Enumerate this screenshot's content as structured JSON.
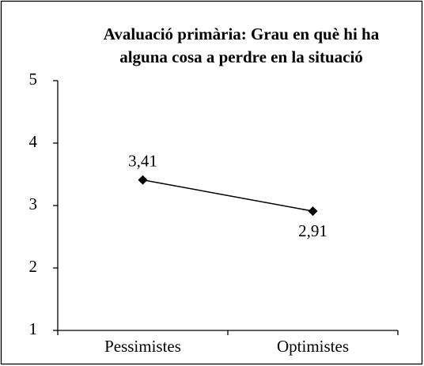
{
  "chart_data": {
    "type": "line",
    "title": [
      "Avaluació primària: Grau en què hi ha",
      "alguna cosa a perdre en la situació"
    ],
    "categories": [
      "Pessimistes",
      "Optimistes"
    ],
    "series": [
      {
        "color": "#000000",
        "values": [
          3.41,
          2.91
        ],
        "value_labels": [
          "3,41",
          "2,91"
        ]
      }
    ],
    "ylim": [
      1,
      5
    ],
    "yticks": [
      1,
      2,
      3,
      4,
      5
    ],
    "grid": false
  }
}
